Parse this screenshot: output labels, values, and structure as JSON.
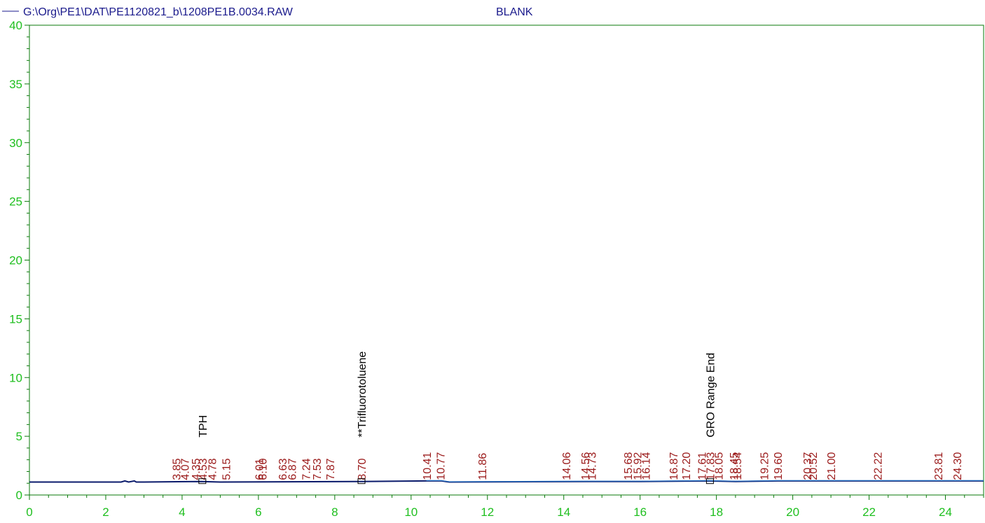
{
  "header": {
    "file_path": "G:\\Org\\PE1\\DAT\\PE1120821_b\\1208PE1B.0034.RAW",
    "sample_name": "BLANK"
  },
  "colors": {
    "axis": "#0a7a0a",
    "tick_label": "#1fbf1f",
    "header_text": "#1a1a8c",
    "trace_dark": "#0a1a6b",
    "trace_light": "#2f7fd0",
    "peak_label": "#9b1b1b",
    "annotation": "#000000"
  },
  "chart_data": {
    "type": "line",
    "xlim": [
      0,
      25
    ],
    "ylim": [
      0,
      40
    ],
    "x_ticks": [
      "0",
      "2",
      "4",
      "6",
      "8",
      "10",
      "12",
      "14",
      "16",
      "18",
      "20",
      "22",
      "24"
    ],
    "y_ticks": [
      "0",
      "5",
      "10",
      "15",
      "20",
      "25",
      "30",
      "35",
      "40"
    ],
    "grid": false,
    "series": [
      {
        "name": "G:\\Org\\PE1\\DAT\\PE1120821_b\\1208PE1B.0034.RAW",
        "x": [
          0,
          2.4,
          2.5,
          2.6,
          2.75,
          2.8,
          3.0,
          4.5,
          5.0,
          8.7,
          10.4,
          10.8,
          11.0,
          14.7,
          16.0,
          17.8,
          18.5,
          19.6,
          20.0,
          25.0
        ],
        "y": [
          1.1,
          1.1,
          1.2,
          1.1,
          1.2,
          1.1,
          1.1,
          1.15,
          1.1,
          1.15,
          1.2,
          1.2,
          1.1,
          1.15,
          1.15,
          1.2,
          1.15,
          1.2,
          1.2,
          1.2
        ]
      }
    ],
    "peak_labels": [
      "3.85",
      "4.07",
      "4.35",
      "4.53",
      "4.78",
      "5.15",
      "6.01",
      "6.10",
      "6.63",
      "6.87",
      "7.24",
      "7.53",
      "7.87",
      "8.70",
      "10.41",
      "10.77",
      "11.86",
      "14.06",
      "14.56",
      "14.73",
      "15.68",
      "15.92",
      "16.14",
      "16.87",
      "17.20",
      "17.61",
      "17.83",
      "18.05",
      "18.45",
      "18.54",
      "19.25",
      "19.60",
      "20.37",
      "20.52",
      "21.00",
      "22.22",
      "23.81",
      "24.30"
    ],
    "annotations": [
      {
        "text": "TPH",
        "x": 4.53
      },
      {
        "text": "**Trifluorotoluene",
        "x": 8.7
      },
      {
        "text": "GRO Range End",
        "x": 17.83
      }
    ]
  }
}
